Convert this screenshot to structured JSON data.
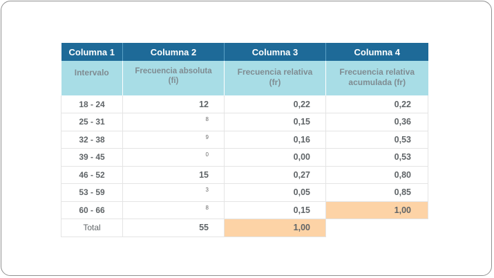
{
  "table": {
    "headers": [
      "Columna 1",
      "Columna 2",
      "Columna 3",
      "Columna 4"
    ],
    "subheaders": {
      "intervalo": "Intervalo",
      "frecuencia_absoluta": [
        "Frecuencia absoluta",
        "(fi)"
      ],
      "frecuencia_relativa": [
        "Frecuencia relativa",
        "(fr)"
      ],
      "frecuencia_relativa_acumulada": [
        "Frecuencia relativa",
        "acumulada (fr)"
      ]
    },
    "rows": [
      {
        "intervalo": "18 - 24",
        "fi": "12",
        "fr": "0,22",
        "acum": "0,22"
      },
      {
        "intervalo": "25 - 31",
        "fi": "8",
        "fr": "0,15",
        "acum": "0,36"
      },
      {
        "intervalo": "32 - 38",
        "fi": "9",
        "fr": "0,16",
        "acum": "0,53"
      },
      {
        "intervalo": "39 - 45",
        "fi": "0",
        "fr": "0,00",
        "acum": "0,53"
      },
      {
        "intervalo": "46 - 52",
        "fi": "15",
        "fr": "0,27",
        "acum": "0,80"
      },
      {
        "intervalo": "53 - 59",
        "fi": "3",
        "fr": "0,05",
        "acum": "0,85"
      },
      {
        "intervalo": "60 - 66",
        "fi": "8",
        "fr": "0,15",
        "acum": "1,00"
      }
    ],
    "total": {
      "label": "Total",
      "fi": "55",
      "fr": "1,00"
    },
    "colors": {
      "header": "#1e6a98",
      "subheader": "#a8dde6",
      "highlight": "#fdd3a6"
    }
  }
}
